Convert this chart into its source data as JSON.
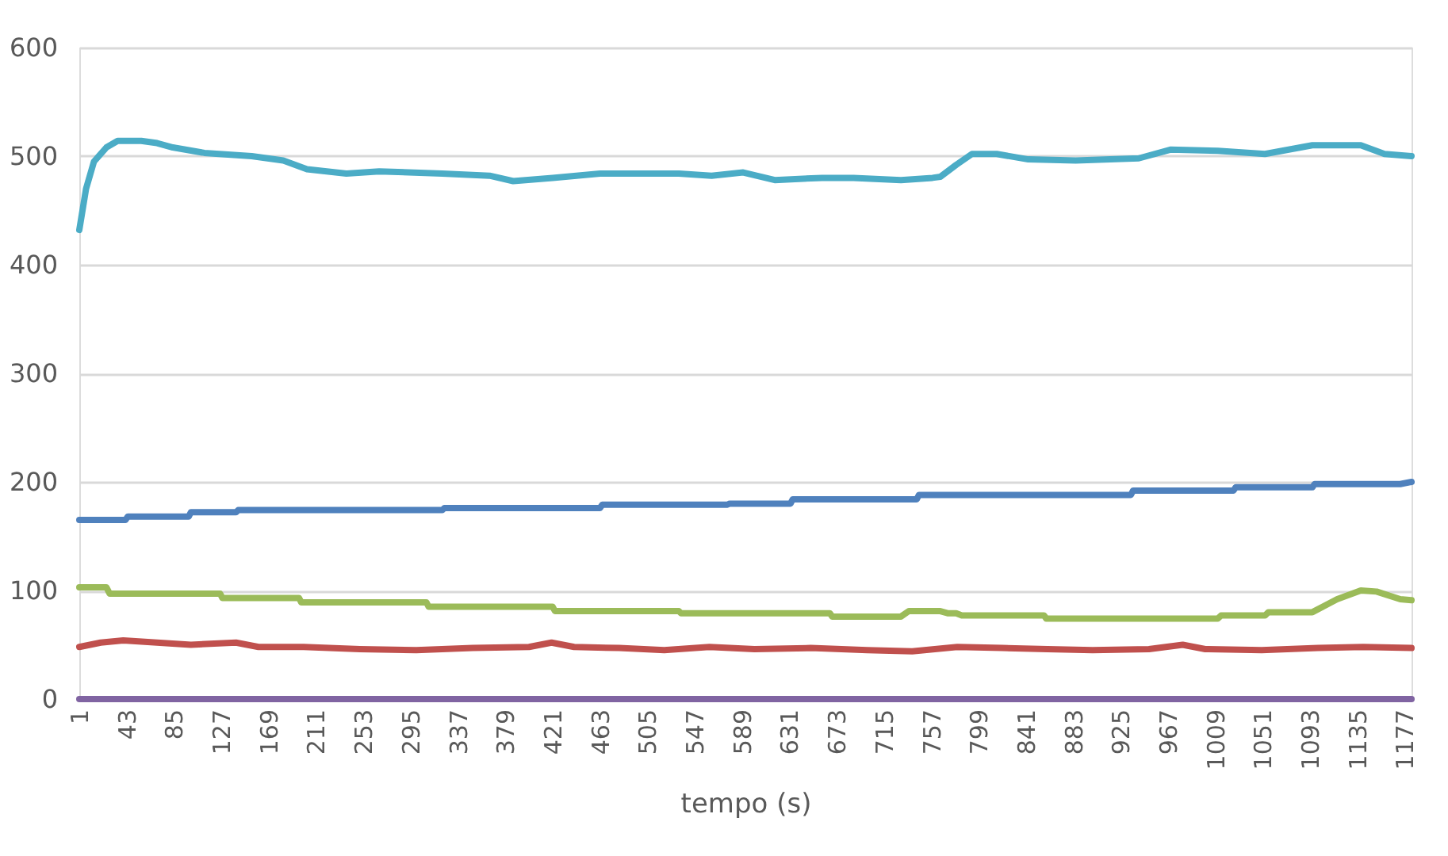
{
  "chart_data": {
    "type": "line",
    "xlabel": "tempo (s)",
    "xlim": [
      1,
      1183
    ],
    "xticks": [
      1,
      43,
      85,
      127,
      169,
      211,
      253,
      295,
      337,
      379,
      421,
      463,
      505,
      547,
      589,
      631,
      673,
      715,
      757,
      799,
      841,
      883,
      925,
      967,
      1009,
      1051,
      1093,
      1135,
      1177
    ],
    "ylim": [
      0,
      600
    ],
    "yticks": [
      0,
      100,
      200,
      300,
      400,
      500,
      600
    ],
    "grid": "y",
    "legend": false,
    "marker": "none",
    "line_style": "solid",
    "series": [
      {
        "color": "#4bacc6",
        "x": [
          1,
          7,
          14,
          25,
          35,
          56,
          70,
          84,
          112,
          154,
          182,
          203,
          238,
          267,
          323,
          365,
          386,
          421,
          463,
          533,
          562,
          590,
          618,
          660,
          688,
          730,
          758,
          765,
          779,
          793,
          815,
          843,
          885,
          941,
          969,
          1011,
          1053,
          1095,
          1138,
          1159,
          1183
        ],
        "values": [
          432,
          470,
          495,
          508,
          514,
          514,
          512,
          508,
          503,
          500,
          496,
          488,
          484,
          486,
          484,
          482,
          477,
          480,
          484,
          484,
          482,
          485,
          478,
          480,
          480,
          478,
          480,
          481,
          492,
          502,
          502,
          497,
          496,
          498,
          506,
          505,
          502,
          510,
          510,
          502,
          500
        ]
      },
      {
        "color": "#4f81bd",
        "x": [
          1,
          42,
          44,
          98,
          100,
          140,
          142,
          323,
          325,
          463,
          465,
          576,
          578,
          632,
          634,
          744,
          746,
          934,
          936,
          1025,
          1027,
          1095,
          1097,
          1173,
          1183
        ],
        "values": [
          165,
          165,
          168,
          168,
          172,
          172,
          174,
          174,
          176,
          176,
          179,
          179,
          180,
          180,
          184,
          184,
          188,
          188,
          192,
          192,
          195,
          195,
          198,
          198,
          200
        ]
      },
      {
        "color": "#9bbb59",
        "x": [
          1,
          25,
          28,
          126,
          128,
          196,
          198,
          309,
          311,
          421,
          423,
          533,
          535,
          667,
          669,
          730,
          737,
          765,
          772,
          779,
          784,
          857,
          859,
          1011,
          1014,
          1053,
          1056,
          1095,
          1117,
          1138,
          1152,
          1173,
          1183
        ],
        "values": [
          103,
          103,
          97,
          97,
          93,
          93,
          89,
          89,
          85,
          85,
          81,
          81,
          79,
          79,
          76,
          76,
          81,
          81,
          79,
          79,
          77,
          77,
          74,
          74,
          77,
          77,
          80,
          80,
          92,
          100,
          99,
          92,
          91
        ]
      },
      {
        "color": "#c0504d",
        "x": [
          1,
          20,
          40,
          70,
          100,
          140,
          160,
          200,
          250,
          300,
          350,
          400,
          420,
          440,
          480,
          520,
          560,
          600,
          650,
          700,
          740,
          780,
          820,
          860,
          900,
          950,
          980,
          1000,
          1050,
          1100,
          1140,
          1183
        ],
        "values": [
          48,
          52,
          54,
          52,
          50,
          52,
          48,
          48,
          46,
          45,
          47,
          48,
          52,
          48,
          47,
          45,
          48,
          46,
          47,
          45,
          44,
          48,
          47,
          46,
          45,
          46,
          50,
          46,
          45,
          47,
          48,
          47
        ]
      },
      {
        "color": "#8064a2",
        "x": [
          1,
          1183
        ],
        "values": [
          0,
          0
        ]
      }
    ]
  }
}
